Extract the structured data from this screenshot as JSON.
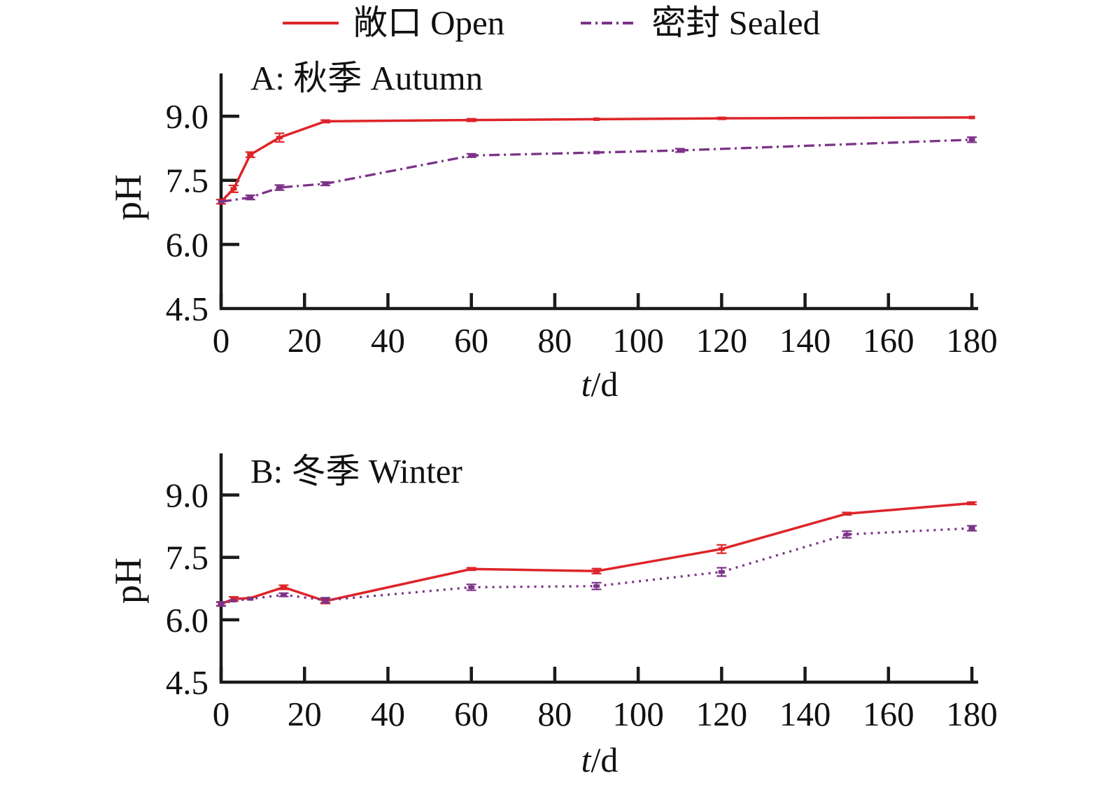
{
  "figure": {
    "legend": [
      {
        "label": "敞口 Open",
        "color": "#dd2429",
        "dash": "solid"
      },
      {
        "label": "密封 Sealed",
        "color": "#7c3388",
        "dash": "dashdot"
      }
    ],
    "axis": {
      "xlabel_italic": "t",
      "xlabel_rest": "/d",
      "ylabel": "pH",
      "xticks": [
        0,
        20,
        40,
        60,
        80,
        100,
        120,
        140,
        160,
        180
      ],
      "ytick_labels": [
        "9.0",
        "7.5",
        "6.0",
        "4.5"
      ],
      "yticks": [
        9.0,
        7.5,
        6.0,
        4.5
      ],
      "xlim": [
        0,
        181.5
      ],
      "ylim": [
        4.5,
        10.0
      ],
      "grid": false,
      "legend_position": "top-center"
    }
  },
  "chart_data": [
    {
      "type": "line",
      "title": "A: 秋季 Autumn",
      "xlabel": "t/d",
      "ylabel": "pH",
      "xlim": [
        0,
        181.5
      ],
      "ylim": [
        4.5,
        10.0
      ],
      "grid": false,
      "series": [
        {
          "name": "敞口 Open",
          "color": "#dd2429",
          "style": "solid",
          "x": [
            0,
            3,
            7,
            14,
            25,
            60,
            90,
            120,
            180
          ],
          "y": [
            7.0,
            7.3,
            8.1,
            8.5,
            8.88,
            8.91,
            8.93,
            8.95,
            8.97
          ],
          "err": [
            0.05,
            0.08,
            0.06,
            0.1,
            0.03,
            0.03,
            0,
            0.02,
            0
          ]
        },
        {
          "name": "密封 Sealed",
          "color": "#7c3388",
          "style": "dashdot",
          "x": [
            0,
            7,
            14,
            25,
            60,
            90,
            110,
            180
          ],
          "y": [
            7.0,
            7.1,
            7.33,
            7.42,
            8.08,
            8.15,
            8.2,
            8.45
          ],
          "err": [
            0,
            0.05,
            0.06,
            0.04,
            0.04,
            0,
            0.04,
            0.06
          ]
        }
      ]
    },
    {
      "type": "line",
      "title": "B: 冬季 Winter",
      "xlabel": "t/d",
      "ylabel": "pH",
      "xlim": [
        0,
        181.5
      ],
      "ylim": [
        4.5,
        10.0
      ],
      "grid": false,
      "series": [
        {
          "name": "敞口 Open",
          "color": "#dd2429",
          "style": "solid",
          "x": [
            0,
            3,
            7,
            15,
            25,
            60,
            90,
            120,
            150,
            180
          ],
          "y": [
            6.38,
            6.5,
            6.52,
            6.78,
            6.45,
            7.22,
            7.17,
            7.7,
            8.55,
            8.8
          ],
          "err": [
            0.04,
            0.05,
            0,
            0.05,
            0.06,
            0.03,
            0.06,
            0.1,
            0.03,
            0.03
          ]
        },
        {
          "name": "密封 Sealed",
          "color": "#7c3388",
          "style": "dotted",
          "x": [
            0,
            3,
            7,
            15,
            25,
            60,
            90,
            120,
            150,
            180
          ],
          "y": [
            6.38,
            6.46,
            6.5,
            6.6,
            6.47,
            6.78,
            6.81,
            7.15,
            8.05,
            8.2
          ],
          "err": [
            0.05,
            0,
            0,
            0.04,
            0.06,
            0.07,
            0.08,
            0.1,
            0.08,
            0.06
          ]
        }
      ]
    }
  ]
}
